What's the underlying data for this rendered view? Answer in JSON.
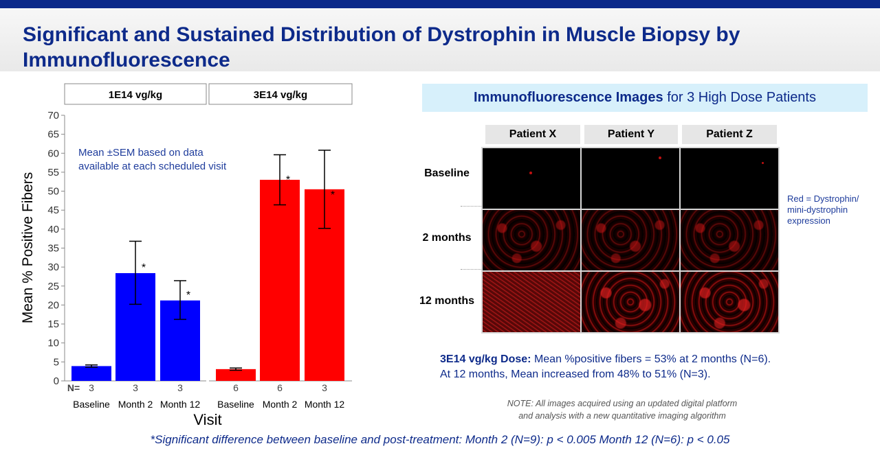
{
  "slide": {
    "title": "Significant and Sustained Distribution of Dystrophin in Muscle Biopsy by Immunofluorescence"
  },
  "colors": {
    "header_blue": "#0d2a8a",
    "low_dose": "#0000ff",
    "high_dose": "#ff0000",
    "banner_bg": "#d7f0fb"
  },
  "chart_data": {
    "type": "bar",
    "ylabel": "Mean % Positive Fibers",
    "xlabel": "Visit",
    "ylim": [
      0,
      70
    ],
    "yticks": [
      0,
      5,
      10,
      15,
      20,
      25,
      30,
      35,
      40,
      45,
      50,
      55,
      60,
      65,
      70
    ],
    "n_prefix": "N=",
    "annotation": [
      "Mean ±SEM based on data",
      "available at each scheduled visit"
    ],
    "panels": [
      {
        "name": "1E14 vg/kg",
        "color": "#0000ff",
        "categories": [
          "Baseline",
          "Month 2",
          "Month 12"
        ],
        "values": [
          3.9,
          28.4,
          21.2
        ],
        "err_low": [
          3.6,
          20.2,
          16.2
        ],
        "err_high": [
          4.2,
          36.8,
          26.4
        ],
        "n": [
          "3",
          "3",
          "3"
        ],
        "significant": [
          "",
          "*",
          "*"
        ]
      },
      {
        "name": "3E14 vg/kg",
        "color": "#ff0000",
        "categories": [
          "Baseline",
          "Month 2",
          "Month 12"
        ],
        "values": [
          3.1,
          53.0,
          50.5
        ],
        "err_low": [
          2.8,
          46.4,
          40.2
        ],
        "err_high": [
          3.4,
          59.6,
          60.8
        ],
        "n": [
          "6",
          "6",
          "3"
        ],
        "significant": [
          "",
          "*",
          "*"
        ]
      }
    ]
  },
  "if_panel": {
    "banner_bold": "Immunofluorescence Images",
    "banner_rest": " for 3 High Dose Patients",
    "columns": [
      "Patient X",
      "Patient Y",
      "Patient Z"
    ],
    "rows": [
      "Baseline",
      "2 months",
      "12 months"
    ],
    "legend_note": "Red = Dystrophin/ mini-dystrophin expression"
  },
  "summary": {
    "bold": "3E14 vg/kg Dose:",
    "line1_rest": " Mean %positive fibers = 53% at 2 months (N=6).",
    "line2": "At 12 months, Mean increased from 48% to 51% (N=3)."
  },
  "note": {
    "line1": "NOTE: All images acquired using an updated digital platform",
    "line2": "and analysis with a new quantitative imaging algorithm"
  },
  "footnote": "*Significant difference between baseline and post-treatment: Month 2 (N=9): p < 0.005  Month 12 (N=6): p < 0.05"
}
